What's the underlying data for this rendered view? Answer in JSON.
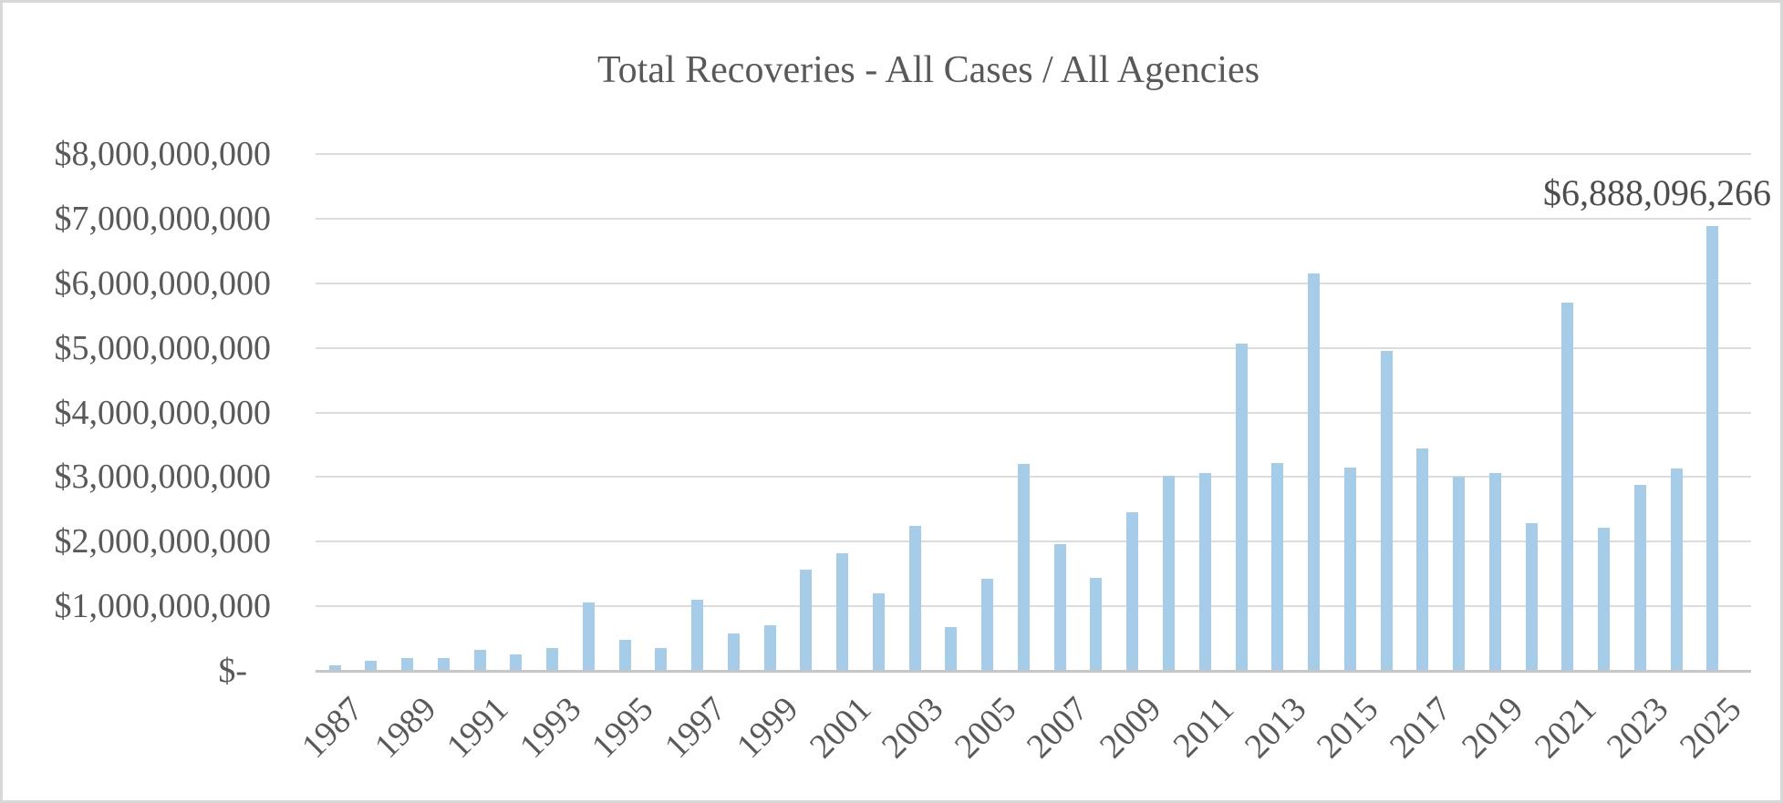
{
  "chart_data": {
    "type": "bar",
    "title": "Total Recoveries - All Cases / All Agencies",
    "xlabel": "",
    "ylabel": "",
    "legend": "none",
    "grid": "horizontal",
    "x": [
      1987,
      1988,
      1989,
      1990,
      1991,
      1992,
      1993,
      1994,
      1995,
      1996,
      1997,
      1998,
      1999,
      2000,
      2001,
      2002,
      2003,
      2004,
      2005,
      2006,
      2007,
      2008,
      2009,
      2010,
      2011,
      2012,
      2013,
      2014,
      2015,
      2016,
      2017,
      2018,
      2019,
      2020,
      2021,
      2022,
      2023,
      2024,
      2025
    ],
    "values_billions": [
      0.086,
      0.155,
      0.198,
      0.202,
      0.324,
      0.252,
      0.349,
      1.061,
      0.477,
      0.358,
      1.094,
      0.585,
      0.712,
      1.566,
      1.825,
      1.206,
      2.248,
      0.672,
      1.425,
      3.208,
      1.966,
      1.438,
      2.452,
      3.022,
      3.061,
      5.065,
      3.21,
      6.15,
      3.15,
      4.95,
      3.44,
      3.0,
      3.06,
      2.29,
      5.7,
      2.22,
      2.88,
      3.13,
      6.888096266
    ],
    "annotation_label": "$6,888,096,266",
    "annotation_year": 2025,
    "y_axis": {
      "min_billions": 0,
      "max_billions": 8,
      "tick_step_billions": 1,
      "labels": [
        "$8,000,000,000",
        "$7,000,000,000",
        "$6,000,000,000",
        "$5,000,000,000",
        "$4,000,000,000",
        "$3,000,000,000",
        "$2,000,000,000",
        "$1,000,000,000",
        "$-"
      ]
    },
    "x_axis": {
      "tick_years": [
        1987,
        1989,
        1991,
        1993,
        1995,
        1997,
        1999,
        2001,
        2003,
        2005,
        2007,
        2009,
        2011,
        2013,
        2015,
        2017,
        2019,
        2021,
        2023,
        2025
      ]
    },
    "colors": {
      "bar_fill": "#a5cdea",
      "gridline": "#dcdcdc",
      "axis_line": "#c6c6c6",
      "text": "#595959",
      "annotation_text": "#4d4d4d",
      "frame_border": "#d8d8d8",
      "background": "#ffffff"
    }
  }
}
